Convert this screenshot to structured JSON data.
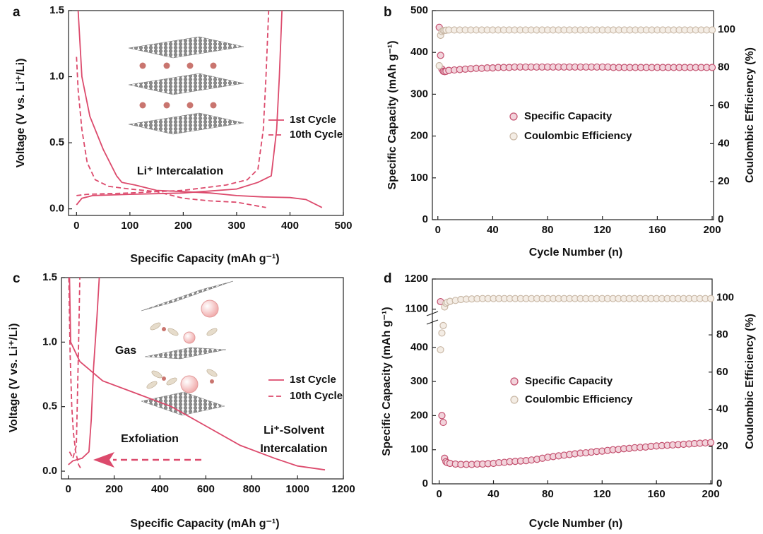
{
  "chart_data": [
    {
      "type": "line",
      "panel": "a",
      "xlabel": "Specific Capacity (mAh g⁻¹)",
      "ylabel": "Voltage (V vs. Li⁺/Li)",
      "xlim": [
        -15,
        500
      ],
      "ylim": [
        -0.05,
        1.5
      ],
      "xticks": [
        0,
        100,
        200,
        300,
        400,
        500
      ],
      "yticks": [
        {
          "value": 0,
          "label": "0.0"
        },
        {
          "value": 0.5,
          "label": "0.5"
        },
        {
          "value": 1,
          "label": "1.0"
        },
        {
          "value": 1.5,
          "label": "1.5"
        }
      ],
      "annotations": [
        "Li⁺ Intercalation"
      ],
      "series": [
        {
          "name": "1st Cycle",
          "color": "#dc4a6c",
          "dash": false,
          "x": [
            3,
            10,
            25,
            50,
            75,
            85,
            110,
            150,
            250,
            300,
            350,
            400,
            430,
            460,
            null,
            0,
            10,
            30,
            100,
            200,
            300,
            340,
            365,
            375,
            380,
            385
          ],
          "values": [
            1.5,
            1.0,
            0.7,
            0.45,
            0.25,
            0.2,
            0.18,
            0.14,
            0.12,
            0.1,
            0.09,
            0.085,
            0.07,
            0.01,
            null,
            0.03,
            0.08,
            0.1,
            0.11,
            0.12,
            0.15,
            0.2,
            0.25,
            0.6,
            1.0,
            1.5
          ]
        },
        {
          "name": "10th Cycle",
          "color": "#dc4a6c",
          "dash": true,
          "x": [
            0,
            3,
            10,
            20,
            35,
            60,
            100,
            150,
            200,
            250,
            300,
            355,
            null,
            0,
            20,
            100,
            200,
            280,
            320,
            340,
            350,
            355,
            360
          ],
          "values": [
            1.15,
            0.9,
            0.6,
            0.35,
            0.22,
            0.17,
            0.15,
            0.13,
            0.08,
            0.06,
            0.05,
            0.01,
            null,
            0.1,
            0.11,
            0.12,
            0.14,
            0.18,
            0.22,
            0.3,
            0.6,
            1.0,
            1.5
          ]
        }
      ]
    },
    {
      "type": "scatter",
      "panel": "b",
      "xlabel": "Cycle Number (n)",
      "ylabel": "Specific Capacity (mAh g⁻¹)",
      "y2label": "Coulombic Efficiency (%)",
      "xlim": [
        -4,
        201
      ],
      "ylim": [
        0,
        500
      ],
      "y2lim": [
        0,
        110
      ],
      "xticks": [
        0,
        40,
        80,
        120,
        160,
        200
      ],
      "yticks": [
        0,
        100,
        200,
        300,
        400,
        500
      ],
      "y2ticks": [
        0,
        20,
        40,
        60,
        80,
        100
      ],
      "x": [
        1,
        2,
        3,
        4,
        5,
        6,
        8,
        12,
        16,
        20,
        24,
        28,
        32,
        36,
        40,
        44,
        48,
        52,
        56,
        60,
        64,
        68,
        72,
        76,
        80,
        84,
        88,
        92,
        96,
        100,
        104,
        108,
        112,
        116,
        120,
        124,
        128,
        132,
        136,
        140,
        144,
        148,
        152,
        156,
        160,
        164,
        168,
        172,
        176,
        180,
        184,
        188,
        192,
        196,
        200
      ],
      "series": [
        {
          "name": "Specific Capacity",
          "color": "#c4506f",
          "fill": "#f2d3db",
          "values": [
            460,
            393,
            360,
            355,
            354,
            355,
            357,
            358,
            359,
            360,
            361,
            362,
            362,
            363,
            363,
            364,
            364,
            364,
            365,
            365,
            365,
            365,
            365,
            365,
            365,
            365,
            365,
            365,
            365,
            365,
            365,
            365,
            365,
            365,
            365,
            365,
            364,
            364,
            364,
            364,
            364,
            364,
            364,
            364,
            364,
            364,
            364,
            364,
            364,
            364,
            364,
            364,
            364,
            364,
            364
          ]
        },
        {
          "name": "Coulombic Efficiency",
          "color": "#c9b8a6",
          "fill": "#f4ede5",
          "axis": "y2",
          "values": [
            81,
            97,
            99,
            99.5,
            99.6,
            99.7,
            99.8,
            99.8,
            99.8,
            99.8,
            99.8,
            99.8,
            99.8,
            99.8,
            99.8,
            99.8,
            99.8,
            99.8,
            99.8,
            99.8,
            99.8,
            99.8,
            99.8,
            99.8,
            99.8,
            99.8,
            99.8,
            99.8,
            99.8,
            99.8,
            99.8,
            99.8,
            99.8,
            99.8,
            99.8,
            99.8,
            99.8,
            99.8,
            99.8,
            99.8,
            99.8,
            99.8,
            99.8,
            99.8,
            99.8,
            99.8,
            99.8,
            99.8,
            99.8,
            99.8,
            99.8,
            99.8,
            99.8,
            99.8,
            99.8
          ]
        }
      ]
    },
    {
      "type": "line",
      "panel": "c",
      "xlabel": "Specific Capacity (mAh g⁻¹)",
      "ylabel": "Voltage (V vs. Li⁺/Li)",
      "xlim": [
        -30,
        1200
      ],
      "ylim": [
        -0.06,
        1.5
      ],
      "xticks": [
        0,
        200,
        400,
        600,
        800,
        1000,
        1200
      ],
      "yticks": [
        {
          "value": 0,
          "label": "0.0"
        },
        {
          "value": 0.5,
          "label": "0.5"
        },
        {
          "value": 1,
          "label": "1.0"
        },
        {
          "value": 1.5,
          "label": "1.5"
        }
      ],
      "annotations": [
        "Gas",
        "Exfoliation",
        "Li⁺-Solvent",
        "Intercalation"
      ],
      "series": [
        {
          "name": "1st Cycle",
          "color": "#dc4a6c",
          "dash": false,
          "x": [
            5,
            10,
            50,
            150,
            300,
            450,
            600,
            750,
            900,
            1000,
            1120,
            null,
            0,
            20,
            60,
            90,
            100,
            110,
            125,
            135
          ],
          "values": [
            1.5,
            1.0,
            0.85,
            0.7,
            0.6,
            0.5,
            0.35,
            0.2,
            0.1,
            0.04,
            0.01,
            null,
            0.05,
            0.08,
            0.1,
            0.15,
            0.4,
            0.8,
            1.2,
            1.5
          ]
        },
        {
          "name": "10th Cycle",
          "color": "#dc4a6c",
          "dash": true,
          "x": [
            2,
            8,
            15,
            22,
            32,
            45,
            58,
            null,
            5,
            20,
            35,
            40,
            45,
            50
          ],
          "values": [
            1.5,
            0.9,
            0.5,
            0.3,
            0.15,
            0.05,
            0.01,
            null,
            0.15,
            0.1,
            0.2,
            0.6,
            1.0,
            1.5
          ]
        }
      ]
    },
    {
      "type": "scatter",
      "panel": "d",
      "xlabel": "Cycle Number (n)",
      "ylabel": "Specific Capacity (mAh g⁻¹)",
      "y2label": "Coulombic Efficiency (%)",
      "xlim": [
        -5,
        201
      ],
      "ylim": [
        0,
        1200
      ],
      "ybreak": [
        470,
        1090
      ],
      "y2lim": [
        0,
        110
      ],
      "xticks": [
        0,
        40,
        80,
        120,
        160,
        200
      ],
      "yticks": [
        0,
        100,
        200,
        300,
        400,
        1100,
        1200
      ],
      "y2ticks": [
        0,
        20,
        40,
        60,
        80,
        100
      ],
      "x": [
        1,
        2,
        3,
        4,
        5,
        6,
        8,
        12,
        16,
        20,
        24,
        28,
        32,
        36,
        40,
        44,
        48,
        52,
        56,
        60,
        64,
        68,
        72,
        76,
        80,
        84,
        88,
        92,
        96,
        100,
        104,
        108,
        112,
        116,
        120,
        124,
        128,
        132,
        136,
        140,
        144,
        148,
        152,
        156,
        160,
        164,
        168,
        172,
        176,
        180,
        184,
        188,
        192,
        196,
        200
      ],
      "series": [
        {
          "name": "Specific Capacity",
          "color": "#c4506f",
          "fill": "#f2d3db",
          "values": [
            1125,
            200,
            180,
            75,
            65,
            62,
            60,
            58,
            57,
            57,
            57,
            58,
            58,
            59,
            60,
            62,
            63,
            65,
            66,
            67,
            68,
            70,
            72,
            75,
            78,
            80,
            82,
            84,
            86,
            88,
            90,
            91,
            93,
            95,
            96,
            98,
            100,
            101,
            103,
            104,
            106,
            107,
            108,
            110,
            111,
            112,
            113,
            114,
            115,
            116,
            117,
            118,
            119,
            120,
            121
          ]
        },
        {
          "name": "Coulombic Efficiency",
          "color": "#c9b8a6",
          "fill": "#f4ede5",
          "axis": "y2",
          "values": [
            72,
            81,
            85,
            95,
            97,
            97.5,
            98,
            98.5,
            99,
            99.2,
            99.3,
            99.4,
            99.5,
            99.5,
            99.5,
            99.5,
            99.5,
            99.5,
            99.5,
            99.5,
            99.5,
            99.5,
            99.5,
            99.5,
            99.5,
            99.5,
            99.5,
            99.5,
            99.5,
            99.5,
            99.5,
            99.5,
            99.5,
            99.5,
            99.5,
            99.5,
            99.5,
            99.5,
            99.5,
            99.5,
            99.5,
            99.5,
            99.5,
            99.5,
            99.5,
            99.5,
            99.5,
            99.5,
            99.5,
            99.5,
            99.5,
            99.5,
            99.5,
            99.5,
            99.5
          ]
        }
      ]
    }
  ]
}
